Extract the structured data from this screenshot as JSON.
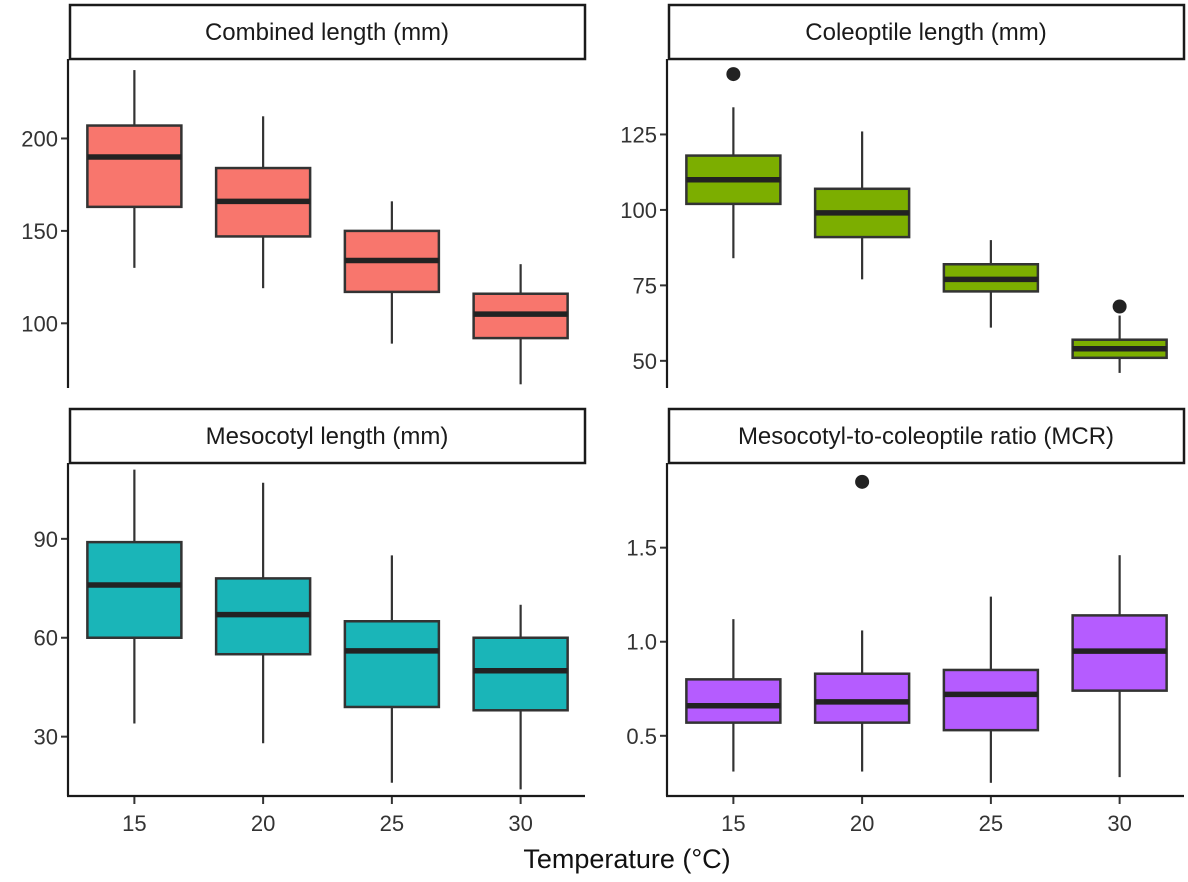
{
  "chart_data": {
    "type": "boxplot",
    "xlabel": "Temperature (°C)",
    "categories": [
      "15",
      "20",
      "25",
      "30"
    ],
    "panels": [
      {
        "title": "Combined length (mm)",
        "color": "#F8766D",
        "ylim": [
          65,
          243
        ],
        "yticks": [
          100,
          150,
          200
        ],
        "boxes": [
          {
            "min": 130,
            "q1": 163,
            "median": 190,
            "q3": 207,
            "max": 237,
            "outliers": []
          },
          {
            "min": 119,
            "q1": 147,
            "median": 166,
            "q3": 184,
            "max": 212,
            "outliers": []
          },
          {
            "min": 89,
            "q1": 117,
            "median": 134,
            "q3": 150,
            "max": 166,
            "outliers": []
          },
          {
            "min": 67,
            "q1": 92,
            "median": 105,
            "q3": 116,
            "max": 132,
            "outliers": []
          }
        ]
      },
      {
        "title": "Coleoptile length (mm)",
        "color": "#7CAE00",
        "ylim": [
          41,
          150
        ],
        "yticks": [
          50,
          75,
          100,
          125
        ],
        "boxes": [
          {
            "min": 84,
            "q1": 102,
            "median": 110,
            "q3": 118,
            "max": 134,
            "outliers": [
              145
            ]
          },
          {
            "min": 77,
            "q1": 91,
            "median": 99,
            "q3": 107,
            "max": 126,
            "outliers": []
          },
          {
            "min": 61,
            "q1": 73,
            "median": 77,
            "q3": 82,
            "max": 90,
            "outliers": []
          },
          {
            "min": 46,
            "q1": 51,
            "median": 54,
            "q3": 57,
            "max": 65,
            "outliers": [
              68
            ]
          }
        ]
      },
      {
        "title": "Mesocotyl length (mm)",
        "color": "#1AB5B8",
        "ylim": [
          12,
          113
        ],
        "yticks": [
          30,
          60,
          90
        ],
        "boxes": [
          {
            "min": 34,
            "q1": 60,
            "median": 76,
            "q3": 89,
            "max": 111,
            "outliers": []
          },
          {
            "min": 28,
            "q1": 55,
            "median": 67,
            "q3": 78,
            "max": 107,
            "outliers": []
          },
          {
            "min": 16,
            "q1": 39,
            "median": 56,
            "q3": 65,
            "max": 85,
            "outliers": []
          },
          {
            "min": 14,
            "q1": 38,
            "median": 50,
            "q3": 60,
            "max": 70,
            "outliers": []
          }
        ]
      },
      {
        "title": "Mesocotyl-to-coleoptile ratio (MCR)",
        "color": "#B55CFF",
        "ylim": [
          0.18,
          1.95
        ],
        "yticks": [
          0.5,
          1.0,
          1.5
        ],
        "ytick_labels": [
          "0.5",
          "1.0",
          "1.5"
        ],
        "boxes": [
          {
            "min": 0.31,
            "q1": 0.57,
            "median": 0.66,
            "q3": 0.8,
            "max": 1.12,
            "outliers": []
          },
          {
            "min": 0.31,
            "q1": 0.57,
            "median": 0.68,
            "q3": 0.83,
            "max": 1.06,
            "outliers": [
              1.85
            ]
          },
          {
            "min": 0.25,
            "q1": 0.53,
            "median": 0.72,
            "q3": 0.85,
            "max": 1.24,
            "outliers": []
          },
          {
            "min": 0.28,
            "q1": 0.74,
            "median": 0.95,
            "q3": 1.14,
            "max": 1.46,
            "outliers": []
          }
        ]
      }
    ]
  }
}
